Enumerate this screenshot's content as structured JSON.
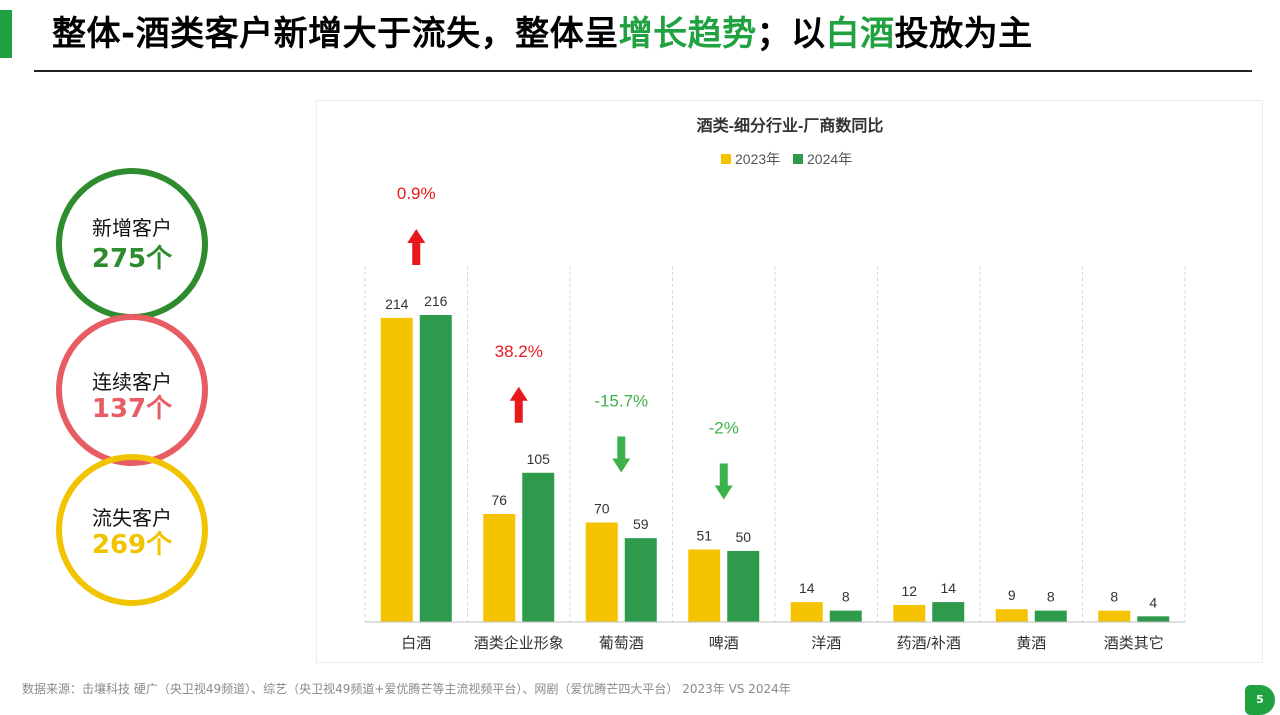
{
  "slide": {
    "title_parts": [
      "整体-酒类客户新增大于流失，整体呈",
      "增长趋势",
      "；以",
      "白酒",
      "投放为主"
    ],
    "accent_color": "#1fa23f",
    "page_number": "5",
    "source_note": "数据来源：击壤科技  硬广（央卫视49频道）、综艺（央卫视49频道+爱优腾芒等主流视频平台）、网剧（爱优腾芒四大平台）  2023年 VS 2024年"
  },
  "summary": [
    {
      "label": "新增客户",
      "value": "275个",
      "color": "#2e8b2e"
    },
    {
      "label": "连续客户",
      "value": "137个",
      "color": "#e85c63"
    },
    {
      "label": "流失客户",
      "value": "269个",
      "color": "#f2c400"
    }
  ],
  "chart_data": {
    "type": "bar",
    "title": "酒类-细分行业-厂商数同比",
    "categories": [
      "白酒",
      "酒类企业形象",
      "葡萄酒",
      "啤酒",
      "洋酒",
      "药酒/补酒",
      "黄酒",
      "酒类其它"
    ],
    "series": [
      {
        "name": "2023年",
        "values": [
          214,
          76,
          70,
          51,
          14,
          12,
          9,
          8
        ],
        "color": "#f6c300"
      },
      {
        "name": "2024年",
        "values": [
          216,
          105,
          59,
          50,
          8,
          14,
          8,
          4
        ],
        "color": "#2e9a4b"
      }
    ],
    "annotations": [
      {
        "category": "白酒",
        "text": "0.9%",
        "direction": "up",
        "color": "#e8191c"
      },
      {
        "category": "酒类企业形象",
        "text": "38.2%",
        "direction": "up",
        "color": "#e8191c"
      },
      {
        "category": "葡萄酒",
        "text": "-15.7%",
        "direction": "down",
        "color": "#3cb34a"
      },
      {
        "category": "啤酒",
        "text": "-2%",
        "direction": "down",
        "color": "#3cb34a"
      }
    ],
    "ylim": [
      0,
      216
    ],
    "legend_position": "top-center",
    "grid": "vertical-dashed"
  }
}
